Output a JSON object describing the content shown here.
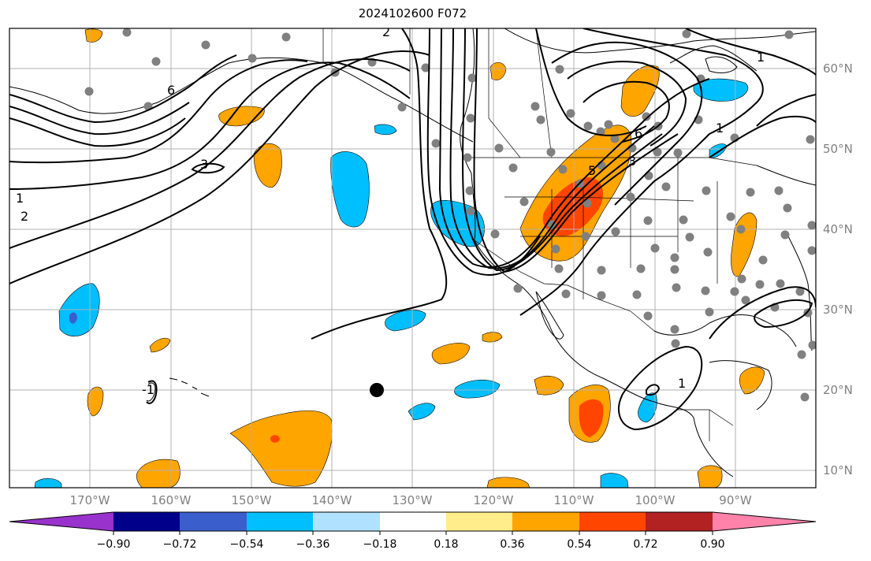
{
  "title": "2024102600 F072",
  "map": {
    "lon_range": [
      -180,
      -80
    ],
    "lat_range": [
      8,
      65
    ],
    "gridlines": true,
    "lon_ticks": [
      "170°W",
      "160°W",
      "150°W",
      "140°W",
      "130°W",
      "120°W",
      "110°W",
      "100°W",
      "90°W"
    ],
    "lat_ticks": [
      "60°N",
      "50°N",
      "40°N",
      "30°N",
      "20°N",
      "10°N"
    ],
    "tick_color": "#808080",
    "contour_labels": [
      "1",
      "2",
      "3",
      "5",
      "6",
      "6",
      "3",
      "1",
      "-1",
      "1",
      "1",
      "2"
    ]
  },
  "colorbar": {
    "ticks": [
      "−0.90",
      "−0.72",
      "−0.54",
      "−0.36",
      "−0.18",
      "0.18",
      "0.36",
      "0.54",
      "0.72",
      "0.90"
    ],
    "colors": [
      "#9932cc",
      "#00008b",
      "#3a5fcd",
      "#00bfff",
      "#b0e2ff",
      "#ffffff",
      "#ffec8b",
      "#ffa500",
      "#ff4500",
      "#b22222",
      "#ff82ab"
    ],
    "extend": "both"
  }
}
